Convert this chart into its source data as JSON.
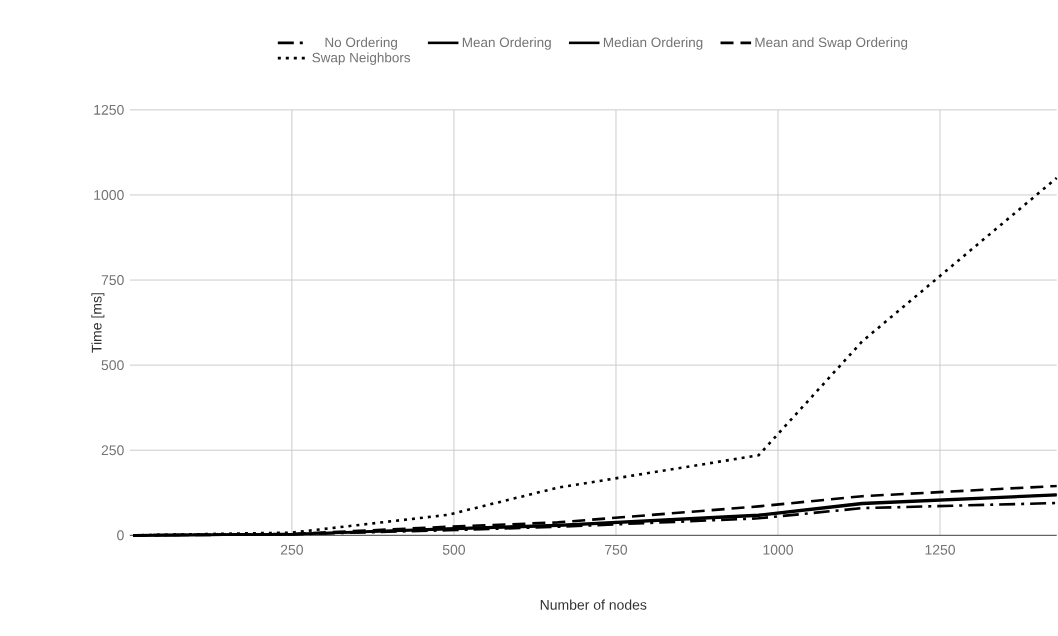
{
  "chart_data": {
    "type": "line",
    "xlabel": "Number of nodes",
    "ylabel": "Time [ms]",
    "x": [
      5,
      250,
      490,
      660,
      970,
      1130,
      1430
    ],
    "series": [
      {
        "name": "No Ordering",
        "color": "#000000",
        "line_style": "dashdot",
        "values": [
          0,
          3,
          15,
          25,
          50,
          80,
          95
        ]
      },
      {
        "name": "Mean Ordering",
        "color": "#000000",
        "line_style": "solid",
        "values": [
          0,
          3,
          20,
          30,
          60,
          95,
          120
        ]
      },
      {
        "name": "Median Ordering",
        "color": "#000000",
        "line_style": "solid",
        "values": [
          0,
          3,
          18,
          28,
          58,
          92,
          118
        ]
      },
      {
        "name": "Mean and Swap Ordering",
        "color": "#000000",
        "line_style": "dashed",
        "values": [
          0,
          4,
          25,
          38,
          85,
          115,
          145
        ]
      },
      {
        "name": "Swap Neighbors",
        "color": "#000000",
        "line_style": "dotted",
        "values": [
          0,
          8,
          60,
          140,
          235,
          570,
          1050
        ]
      }
    ],
    "xlim": [
      0,
      1430
    ],
    "ylim": [
      0,
      1250
    ],
    "xticks": [
      250,
      500,
      750,
      1000,
      1250
    ],
    "yticks": [
      0,
      250,
      500,
      750,
      1000,
      1250
    ],
    "grid": true,
    "legend": "top",
    "marker": "none"
  }
}
